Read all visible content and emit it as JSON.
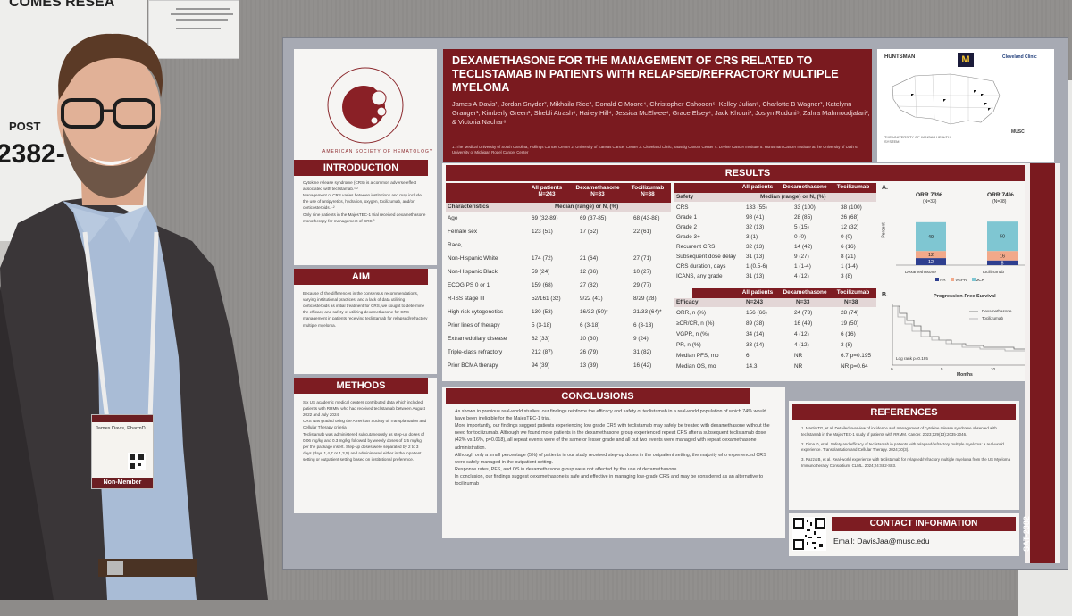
{
  "background_sign": {
    "partial_title": "COMES  RESEA",
    "label": "POST",
    "number": "2382-"
  },
  "poster": {
    "title": "DEXAMETHASONE FOR THE MANAGEMENT OF CRS RELATED TO TECLISTAMAB IN PATIENTS WITH RELAPSED/REFRACTORY MULTIPLE MYELOMA",
    "authors": "James A Davis¹, Jordan Snyder², Mikhaila Rice³, Donald C Moore⁴, Christopher Cahooon⁵, Kelley Julian⁵, Charlotte B Wagner³, Katelynn Granger¹, Kimberly Green¹, Shebli Atrash⁴, Hailey Hill⁴, Jessica McElwee⁴, Grace Elsey⁴, Jack Khouri³, Joslyn Rudoni⁵, Zahra Mahmoudjafari², & Victoria Nachar⁶",
    "affiliations": "1. The Medical University of South Carolina, Hollings Cancer Center  2. University of Kansas Cancer Center  3. Cleveland Clinic, Taussig Cancer Center  4. Levine Cancer Institute  5. Huntsman Cancer Institute at the University of Utah  6. University of Michigan Rogel Cancer Center",
    "society_logo": "AMERICAN SOCIETY OF HEMATOLOGY",
    "logos": [
      "HUNTSMAN",
      "Cleveland Clinic",
      "MUSC",
      "THE UNIVERSITY OF KANSAS HEALTH SYSTEM"
    ],
    "sections": {
      "introduction": {
        "heading": "INTRODUCTION",
        "bullets": [
          "Cytokine release syndrome (CRS) is a common adverse effect associated with teclistamab.¹·²",
          "Management of CRS varies between institutions and may include the use of antipyretics, hydration, oxygen, tocilizumab, and/or corticosteroids.¹·²",
          "Only nine patients in the MajesTEC-1 trial received dexamethasone monotherapy for management of CRS.³"
        ]
      },
      "aim": {
        "heading": "AIM",
        "text": "Because of the differences in the consensus recommendations, varying institutional practices, and a lack of data utilizing corticosteroids as initial treatment for CRS, we sought to determine the efficacy and safety of utilizing dexamethasone for CRS management in patients receiving teclistamab for relapsed/refractory multiple myeloma."
      },
      "methods": {
        "heading": "METHODS",
        "bullets": [
          "Six US academic medical centers contributed data which included patients with RRMM who had received teclistamab between August 2022 and July 2024.",
          "CRS was graded using the American Society of Transplantation and Cellular Therapy criteria",
          "Teclistamab was administered subcutaneously as step-up doses of 0.06 mg/kg and 0.3 mg/kg followed by weekly doses of 1.5 mg/kg per the package insert. Step-up doses were separated by 2 to 3 days (days 1,4,7 or 1,3,5) and administered either in the inpatient setting or outpatient setting based on institutional preference."
        ]
      },
      "results": {
        "heading": "RESULTS"
      },
      "conclusions": {
        "heading": "CONCLUSIONS",
        "bullets": [
          "As shown in previous real-world studies, our findings reinforce the efficacy and safety of teclistamab in a real-world population of which 74% would have been ineligible for the MajesTEC-1 trial.",
          "More importantly, our findings suggest patients experiencing low grade CRS with teclistamab may safely be treated with dexamethasone without the need for tocilizumab. Although we found more patients in the dexamethasone group experienced repeat CRS after a subsequent teclistamab dose (42% vs 16%, p=0.018), all repeat events were of the same or lesser grade and all but two events were managed with repeat dexamethasone administration.",
          "Although only a small percentage (5%) of patients in our study received step-up doses in the outpatient setting, the majority who experienced CRS were safely managed in the outpatient setting.",
          "Response rates, PFS, and OS in dexamethasone group were not affected by the use of dexamethasone.",
          "In conclusion, our findings suggest dexamethasone is safe and effective in managing low-grade CRS and may be considered as an alternative to tocilizumab"
        ]
      },
      "references": {
        "heading": "REFERENCES",
        "items": [
          "1.  Martin TG, et al. Detailed overview of incidence and management of cytokine release syndrome observed with teclistamab in the MajesTEC-1 study of patients with RRMM. Cancer. 2023;129(13):2035-2046.",
          "2.  Dima D, et al. Safety and efficacy of teclistamab in patients with relapsed/refractory multiple myeloma: a real-world experience. Transplantation and Cellular Therapy. 2024;30(3).",
          "3.  Razzo B, et al. Real-world experience with teclistamab for relapsed/refractory multiple myeloma from the US Myeloma Immunotherapy Consortium. CLML. 2024;24:S82-S83."
        ]
      },
      "contact": {
        "heading": "CONTACT INFORMATION",
        "email": "Email: DavisJaa@musc.edu"
      }
    },
    "table_chars": {
      "columns": [
        "Characteristics",
        "All patients N=243",
        "Dexamethasone N=33",
        "Tocilizumab N=38"
      ],
      "subheader": "Median (range) or N, (%)",
      "rows": [
        [
          "Age",
          "69 (32-89)",
          "69 (37-85)",
          "68 (43-88)"
        ],
        [
          "Female sex",
          "123 (51)",
          "17 (52)",
          "22 (61)"
        ],
        [
          "Race,",
          "",
          "",
          ""
        ],
        [
          "Non-Hispanic White",
          "174 (72)",
          "21 (64)",
          "27 (71)"
        ],
        [
          "Non-Hispanic Black",
          "59 (24)",
          "12 (36)",
          "10 (27)"
        ],
        [
          "ECOG PS 0 or 1",
          "159 (68)",
          "27 (82)",
          "29 (77)"
        ],
        [
          "R-ISS stage III",
          "52/161 (32)",
          "9/22 (41)",
          "8/29 (28)"
        ],
        [
          "High risk cytogenetics",
          "130 (53)",
          "16/32 (50)*",
          "21/33 (64)*"
        ],
        [
          "Prior lines of therapy",
          "5 (3-18)",
          "6 (3-18)",
          "6 (3-13)"
        ],
        [
          "Extramedullary disease",
          "82 (33)",
          "10 (30)",
          "9 (24)"
        ],
        [
          "Triple-class refractory",
          "212 (87)",
          "26 (79)",
          "31 (82)"
        ],
        [
          "Prior BCMA therapy",
          "94 (39)",
          "13 (39)",
          "16 (42)"
        ]
      ]
    },
    "table_safety": {
      "columns": [
        "",
        "All patients",
        "Dexamethasone",
        "Tocilizumab"
      ],
      "section": "Safety",
      "subheader": "Median (range) or N, (%)",
      "rows": [
        [
          "CRS",
          "133 (55)",
          "33 (100)",
          "38 (100)"
        ],
        [
          "Grade 1",
          "98 (41)",
          "28 (85)",
          "26 (68)"
        ],
        [
          "Grade 2",
          "32 (13)",
          "5 (15)",
          "12 (32)"
        ],
        [
          "Grade 3+",
          "3 (1)",
          "0 (0)",
          "0 (0)"
        ],
        [
          "Recurrent CRS",
          "32 (13)",
          "14 (42)",
          "6 (16)"
        ],
        [
          "Subsequent dose delay",
          "31 (13)",
          "9 (27)",
          "8 (21)"
        ],
        [
          "CRS duration, days",
          "1 (0.5-6)",
          "1 (1-4)",
          "1 (1-4)"
        ],
        [
          "ICANS, any grade",
          "31 (13)",
          "4 (12)",
          "3 (8)"
        ]
      ]
    },
    "table_efficacy": {
      "columns": [
        "",
        "All patients",
        "Dexamethasone",
        "Tocilizumab"
      ],
      "section": "Efficacy",
      "ns": [
        "N=243",
        "N=33",
        "N=38"
      ],
      "rows": [
        [
          "ORR, n (%)",
          "156 (66)",
          "24 (73)",
          "28 (74)"
        ],
        [
          "≥CR/CR, n (%)",
          "89 (38)",
          "16 (49)",
          "19 (50)"
        ],
        [
          "VGPR, n (%)",
          "34 (14)",
          "4 (12)",
          "6 (16)"
        ],
        [
          "PR, n (%)",
          "33 (14)",
          "4 (12)",
          "3 (8)"
        ],
        [
          "Median PFS, mo",
          "6",
          "NR",
          "6.7   p=0.195"
        ],
        [
          "Median OS, mo",
          "14.3",
          "NR",
          "NR   p=0.64"
        ]
      ]
    },
    "panel_a": {
      "label": "A.",
      "ylabel": "Percent",
      "groups": [
        {
          "title": "ORR 73%",
          "n": "(N=33)",
          "name": "Dexamethasone",
          "segments": [
            {
              "k": "PR",
              "v": 12
            },
            {
              "k": "VGPR",
              "v": 12
            },
            {
              "k": "≥CR",
              "v": 49
            }
          ]
        },
        {
          "title": "ORR 74%",
          "n": "(N=38)",
          "name": "Tocilizumab",
          "segments": [
            {
              "k": "PR",
              "v": 8
            },
            {
              "k": "VGPR",
              "v": 16
            },
            {
              "k": "≥CR",
              "v": 50
            }
          ]
        }
      ],
      "legend": [
        "PR",
        "VGPR",
        "≥CR"
      ],
      "colors": {
        "PR": "#2e3f8f",
        "VGPR": "#f2a98a",
        "≥CR": "#7fc6d2"
      }
    },
    "panel_b": {
      "label": "B.",
      "title": "Progression-Free Survival",
      "legend": [
        "Dexamethasone",
        "Tocilizumab"
      ],
      "pvalue": "Log rank p=0.195",
      "xlabel": "Months",
      "xticks": [
        "0",
        "5",
        "10"
      ]
    },
    "side_label": "SAT-2382",
    "badge": {
      "name": "James Davis, PharmD",
      "tag": "Non-Member"
    }
  }
}
